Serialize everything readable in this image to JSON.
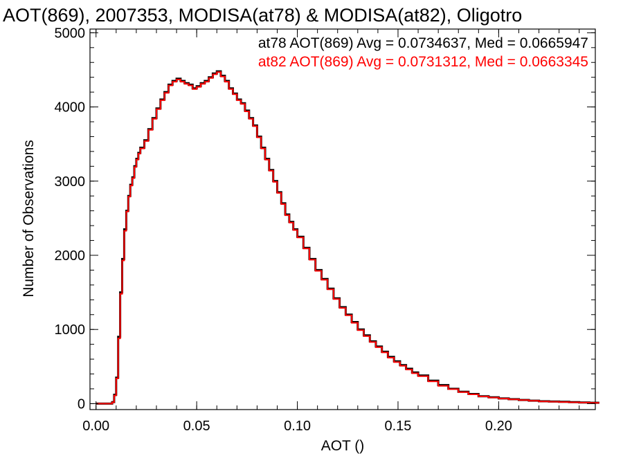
{
  "chart_data": {
    "type": "line",
    "title": "AOT(869), 2007353, MODISA(at78) & MODISA(at82), Oligotro",
    "xlabel": "AOT ()",
    "ylabel": "Number of Observations",
    "xlim": [
      -0.003,
      0.248
    ],
    "ylim": [
      -80,
      5050
    ],
    "x_ticks": [
      0.0,
      0.05,
      0.1,
      0.15,
      0.2
    ],
    "x_tick_labels": [
      "0.00",
      "0.05",
      "0.10",
      "0.15",
      "0.20"
    ],
    "y_ticks": [
      0,
      1000,
      2000,
      3000,
      4000,
      5000
    ],
    "y_tick_labels": [
      "0",
      "1000",
      "2000",
      "3000",
      "4000",
      "5000"
    ],
    "grid": false,
    "legend_placement": "top-right",
    "x": [
      0.0,
      0.002,
      0.004,
      0.006,
      0.008,
      0.009,
      0.01,
      0.011,
      0.012,
      0.013,
      0.014,
      0.015,
      0.016,
      0.017,
      0.018,
      0.019,
      0.02,
      0.021,
      0.022,
      0.024,
      0.026,
      0.028,
      0.03,
      0.032,
      0.034,
      0.036,
      0.038,
      0.04,
      0.042,
      0.044,
      0.046,
      0.048,
      0.05,
      0.052,
      0.054,
      0.056,
      0.058,
      0.06,
      0.062,
      0.064,
      0.066,
      0.068,
      0.07,
      0.072,
      0.074,
      0.076,
      0.078,
      0.08,
      0.082,
      0.084,
      0.086,
      0.088,
      0.09,
      0.092,
      0.094,
      0.096,
      0.098,
      0.1,
      0.103,
      0.106,
      0.109,
      0.112,
      0.115,
      0.118,
      0.121,
      0.124,
      0.127,
      0.13,
      0.133,
      0.136,
      0.139,
      0.142,
      0.145,
      0.148,
      0.151,
      0.154,
      0.157,
      0.16,
      0.165,
      0.17,
      0.175,
      0.18,
      0.185,
      0.19,
      0.195,
      0.2,
      0.205,
      0.21,
      0.215,
      0.22,
      0.225,
      0.23,
      0.235,
      0.24,
      0.245
    ],
    "series": [
      {
        "name": "at78",
        "color": "#000000",
        "values": [
          0,
          0,
          0,
          0,
          20,
          120,
          350,
          900,
          1500,
          1950,
          2350,
          2600,
          2800,
          2950,
          3050,
          3200,
          3300,
          3380,
          3450,
          3550,
          3700,
          3850,
          3980,
          4100,
          4200,
          4300,
          4350,
          4380,
          4350,
          4320,
          4300,
          4250,
          4280,
          4320,
          4350,
          4400,
          4450,
          4480,
          4420,
          4350,
          4250,
          4180,
          4100,
          4050,
          3950,
          3850,
          3750,
          3600,
          3450,
          3300,
          3150,
          3000,
          2850,
          2700,
          2550,
          2450,
          2350,
          2250,
          2100,
          1950,
          1800,
          1680,
          1550,
          1420,
          1300,
          1200,
          1100,
          1000,
          920,
          840,
          770,
          700,
          630,
          570,
          520,
          470,
          420,
          380,
          310,
          250,
          200,
          160,
          130,
          100,
          85,
          70,
          60,
          50,
          40,
          32,
          28,
          24,
          20,
          15,
          12
        ]
      },
      {
        "name": "at82",
        "color": "#ff0000",
        "values": [
          0,
          0,
          0,
          0,
          18,
          110,
          340,
          880,
          1480,
          1930,
          2330,
          2590,
          2790,
          2940,
          3040,
          3190,
          3290,
          3370,
          3440,
          3540,
          3690,
          3840,
          3970,
          4090,
          4190,
          4290,
          4340,
          4370,
          4340,
          4310,
          4290,
          4240,
          4270,
          4310,
          4340,
          4390,
          4440,
          4470,
          4410,
          4340,
          4240,
          4170,
          4090,
          4040,
          3940,
          3840,
          3740,
          3590,
          3440,
          3290,
          3140,
          2990,
          2840,
          2690,
          2540,
          2440,
          2340,
          2240,
          2090,
          1940,
          1790,
          1670,
          1540,
          1410,
          1290,
          1190,
          1090,
          990,
          910,
          830,
          760,
          690,
          620,
          560,
          510,
          460,
          410,
          370,
          300,
          240,
          195,
          155,
          125,
          97,
          82,
          68,
          58,
          48,
          38,
          30,
          26,
          22,
          18,
          14,
          11
        ]
      }
    ],
    "legend": [
      {
        "text": "at78 AOT(869) Avg = 0.0734637, Med = 0.0665947",
        "color": "#000000"
      },
      {
        "text": "at82 AOT(869) Avg = 0.0731312, Med = 0.0663345",
        "color": "#ff0000"
      }
    ]
  }
}
